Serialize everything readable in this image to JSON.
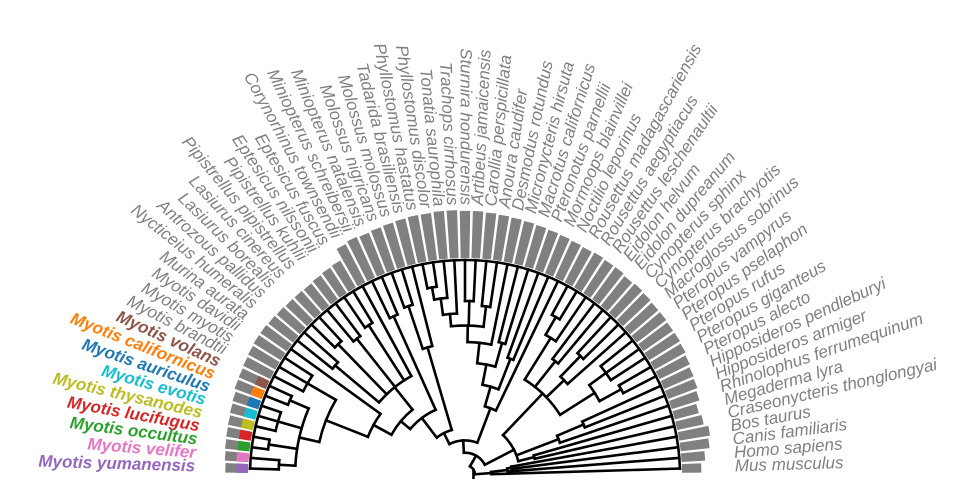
{
  "taxa": [
    "Mus musculus",
    "Homo sapiens",
    "Canis familiaris",
    "Bos taurus",
    "Craseonycteris thonglongyai",
    "Megaderma lyra",
    "Rhinolophus ferrumequinum",
    "Hipposideros armiger",
    "Hipposideros pendleburyi",
    "Pteropus alecto",
    "Pteropus giganteus",
    "Pteropus rufus",
    "Pteropus pselaphon",
    "Pteropus vampyrus",
    "Macroglossus sobrinus",
    "Cynopterus brachyotis",
    "Cynopterus sphinx",
    "Eidolon dupreanum",
    "Eidolon helvum",
    "Rousettus leschenaultii",
    "Rousettus aegyptiacus",
    "Rousettus madagascariensis",
    "Noctilio leporinus",
    "Mormoops blainvillei",
    "Pteronotus parnellii",
    "Macrotus californicus",
    "Micronycteris hirsuta",
    "Desmodus rotundus",
    "Anoura caudifer",
    "Carollia perspicillata",
    "Artibeus jamaicensis",
    "Sturnira hondurensis",
    "Trachops cirrhosus",
    "Tonatia saurophila",
    "Phyllostomus discolor",
    "Phyllostomus hastatus",
    "Tadarida brasiliensis",
    "Molossus molossus",
    "Molossus nigricans",
    "Miniopterus natalensis",
    "Miniopterus schreibersii",
    "Corynorhinus townsendii",
    "Eptesicus fuscus",
    "Eptesicus nilssonii",
    "Pipistrellus kuhlii",
    "Pipistrellus pipistrellus",
    "Lasiurus cinereus",
    "Lasiurus borealis",
    "Antrozous pallidus",
    "Nycticeius humeralis",
    "Murina aurata",
    "Myotis davidii",
    "Myotis myotis",
    "Myotis brandtii",
    "Myotis volans",
    "Myotis californicus",
    "Myotis auriculus",
    "Myotis evotis",
    "Myotis thysanodes",
    "Myotis lucifugus",
    "Myotis occultus",
    "Myotis velifer",
    "Myotis yumanensis"
  ],
  "highlight_colors": {
    "Myotis volans": "#8c564b",
    "Myotis californicus": "#ff7f0e",
    "Myotis auriculus": "#1f77b4",
    "Myotis evotis": "#17becf",
    "Myotis thysanodes": "#bcbd22",
    "Myotis lucifugus": "#d62728",
    "Myotis occultus": "#2ca02c",
    "Myotis velifer": "#e377c2",
    "Myotis yumanensis": "#9467bd"
  },
  "label_color_default": "#808080",
  "bar_color": "#808080",
  "trait_values": [
    0.32,
    0.42,
    0.55,
    0.6,
    0.5,
    0.45,
    0.55,
    0.6,
    0.62,
    0.66,
    0.7,
    0.72,
    0.72,
    0.74,
    0.74,
    0.76,
    0.78,
    0.76,
    0.8,
    0.8,
    0.82,
    0.8,
    0.82,
    0.84,
    0.86,
    0.88,
    0.9,
    0.92,
    0.94,
    0.96,
    0.98,
    0.98,
    1.0,
    1.0,
    0.98,
    0.98,
    0.96,
    0.94,
    0.92,
    0.9,
    0.92,
    0.88,
    0.6,
    0.58,
    0.56,
    0.54,
    0.55,
    0.56,
    0.58,
    0.6,
    0.62,
    0.62,
    0.6,
    0.58,
    0.56,
    0.55,
    0.5,
    0.48,
    0.46,
    0.45,
    0.44,
    0.42,
    0.4
  ],
  "tree": {
    "c": [
      {
        "c": [
          {
            "t": 0
          },
          {
            "c": [
              {
                "t": 1
              },
              {
                "c": [
                  {
                    "t": 2
                  },
                  {
                    "t": 3
                  }
                ],
                "d": 0.18
              }
            ],
            "d": 0.16
          }
        ],
        "d": 0.08
      },
      {
        "c": [
          {
            "c": [
              {
                "c": [
                  {
                    "t": 4
                  },
                  {
                    "t": 5
                  }
                ],
                "d": 0.3
              },
              {
                "c": [
                  {
                    "t": 6
                  },
                  {
                    "c": [
                      {
                        "t": 7
                      },
                      {
                        "t": 8
                      }
                    ],
                    "d": 0.58
                  }
                ],
                "d": 0.44
              },
              {
                "c": [
                  {
                    "c": [
                      {
                        "c": [
                          {
                            "t": 9
                          },
                          {
                            "t": 10
                          }
                        ],
                        "d": 0.82
                      },
                      {
                        "c": [
                          {
                            "t": 11
                          },
                          {
                            "t": 12
                          },
                          {
                            "t": 13
                          }
                        ],
                        "d": 0.8
                      }
                    ],
                    "d": 0.7
                  },
                  {
                    "c": [
                      {
                        "t": 14
                      },
                      {
                        "c": [
                          {
                            "t": 15
                          },
                          {
                            "t": 16
                          }
                        ],
                        "d": 0.76
                      }
                    ],
                    "d": 0.62
                  },
                  {
                    "c": [
                      {
                        "t": 17
                      },
                      {
                        "t": 18
                      }
                    ],
                    "d": 0.66
                  },
                  {
                    "c": [
                      {
                        "t": 19
                      },
                      {
                        "c": [
                          {
                            "t": 20
                          },
                          {
                            "t": 21
                          }
                        ],
                        "d": 0.84
                      }
                    ],
                    "d": 0.74
                  }
                ],
                "d": 0.5
              }
            ],
            "d": 0.22
          },
          {
            "c": [
              {
                "c": [
                  {
                    "t": 22
                  },
                  {
                    "c": [
                      {
                        "c": [
                          {
                            "t": 23
                          },
                          {
                            "t": 24
                          }
                        ],
                        "d": 0.56
                      },
                      {
                        "c": [
                          {
                            "c": [
                              {
                                "t": 25
                              },
                              {
                                "t": 26
                              }
                            ],
                            "d": 0.62
                          },
                          {
                            "c": [
                              {
                                "t": 27
                              },
                              {
                                "c": [
                                  {
                                    "c": [
                                      {
                                        "t": 28
                                      },
                                      {
                                        "t": 29
                                      }
                                    ],
                                    "d": 0.78
                                  },
                                  {
                                    "c": [
                                      {
                                        "t": 30
                                      },
                                      {
                                        "t": 31
                                      }
                                    ],
                                    "d": 0.8
                                  },
                                  {
                                    "c": [
                                      {
                                        "t": 32
                                      },
                                      {
                                        "c": [
                                          {
                                            "t": 33
                                          },
                                          {
                                            "c": [
                                              {
                                                "t": 34
                                              },
                                              {
                                                "t": 35
                                              }
                                            ],
                                            "d": 0.88
                                          }
                                        ],
                                        "d": 0.82
                                      }
                                    ],
                                    "d": 0.74
                                  }
                                ],
                                "d": 0.68
                              }
                            ],
                            "d": 0.6
                          }
                        ],
                        "d": 0.5
                      }
                    ],
                    "d": 0.4
                  }
                ],
                "d": 0.3
              },
              {
                "c": [
                  {
                    "c": [
                      {
                        "t": 36
                      },
                      {
                        "c": [
                          {
                            "t": 37
                          },
                          {
                            "t": 38
                          }
                        ],
                        "d": 0.82
                      }
                    ],
                    "d": 0.6
                  },
                  {
                    "c": [
                      {
                        "c": [
                          {
                            "t": 39
                          },
                          {
                            "t": 40
                          }
                        ],
                        "d": 0.8
                      },
                      {
                        "c": [
                          {
                            "c": [
                              {
                                "t": 41
                              },
                              {
                                "c": [
                                  {
                                    "t": 42
                                  },
                                  {
                                    "t": 43
                                  }
                                ],
                                "d": 0.82
                              },
                              {
                                "c": [
                                  {
                                    "t": 44
                                  },
                                  {
                                    "t": 45
                                  }
                                ],
                                "d": 0.8
                              },
                              {
                                "c": [
                                  {
                                    "t": 46
                                  },
                                  {
                                    "t": 47
                                  }
                                ],
                                "d": 0.84
                              },
                              {
                                "c": [
                                  {
                                    "t": 48
                                  },
                                  {
                                    "t": 49
                                  }
                                ],
                                "d": 0.78
                              }
                            ],
                            "d": 0.5
                          },
                          {
                            "c": [
                              {
                                "t": 50
                              },
                              {
                                "c": [
                                  {
                                    "c": [
                                      {
                                        "t": 51
                                      },
                                      {
                                        "t": 52
                                      },
                                      {
                                        "t": 53
                                      }
                                    ],
                                    "d": 0.84
                                  },
                                  {
                                    "c": [
                                      {
                                        "c": [
                                          {
                                            "t": 54
                                          },
                                          {
                                            "t": 55
                                          }
                                        ],
                                        "d": 0.88
                                      },
                                      {
                                        "c": [
                                          {
                                            "t": 56
                                          },
                                          {
                                            "t": 57
                                          },
                                          {
                                            "t": 58
                                          }
                                        ],
                                        "d": 0.9
                                      },
                                      {
                                        "c": [
                                          {
                                            "t": 59
                                          },
                                          {
                                            "t": 60
                                          }
                                        ],
                                        "d": 0.92
                                      },
                                      {
                                        "c": [
                                          {
                                            "t": 61
                                          },
                                          {
                                            "t": 62
                                          }
                                        ],
                                        "d": 0.86
                                      }
                                    ],
                                    "d": 0.78
                                  }
                                ],
                                "d": 0.68
                              }
                            ],
                            "d": 0.46
                          }
                        ],
                        "d": 0.36
                      }
                    ],
                    "d": 0.3
                  }
                ],
                "d": 0.18
              }
            ],
            "d": 0.12
          }
        ],
        "d": 0.06
      }
    ],
    "d": 0.0
  }
}
